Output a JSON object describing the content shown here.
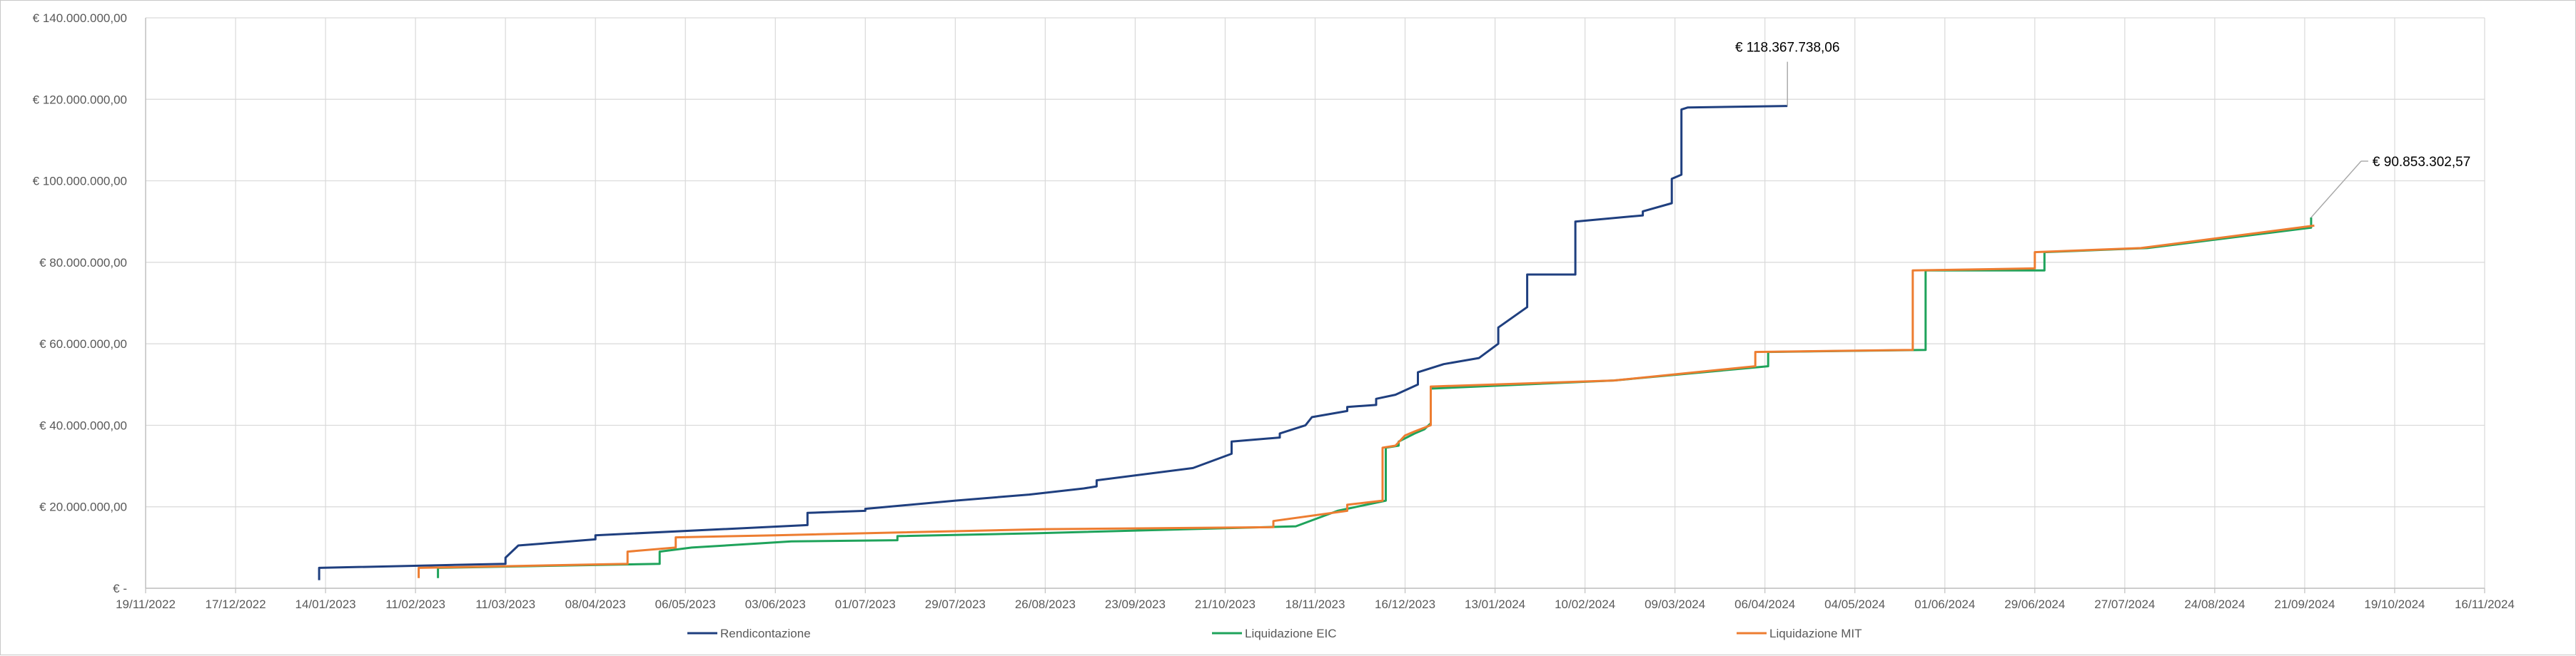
{
  "chart_data": {
    "type": "line",
    "line_shape": "step",
    "title": "",
    "xlabel": "",
    "ylabel": "",
    "grid": true,
    "legend_position": "bottom",
    "xlim": [
      "2022-11-19",
      "2024-11-16"
    ],
    "ylim": [
      0,
      140000000
    ],
    "x_ticks": [
      "19/11/2022",
      "17/12/2022",
      "14/01/2023",
      "11/02/2023",
      "11/03/2023",
      "08/04/2023",
      "06/05/2023",
      "03/06/2023",
      "01/07/2023",
      "29/07/2023",
      "26/08/2023",
      "23/09/2023",
      "21/10/2023",
      "18/11/2023",
      "16/12/2023",
      "13/01/2024",
      "10/02/2024",
      "09/03/2024",
      "06/04/2024",
      "04/05/2024",
      "01/06/2024",
      "29/06/2024",
      "27/07/2024",
      "24/08/2024",
      "21/09/2024",
      "19/10/2024",
      "16/11/2024"
    ],
    "y_ticks": [
      {
        "value": 0,
        "label": "€ -"
      },
      {
        "value": 20000000,
        "label": "€ 20.000.000,00"
      },
      {
        "value": 40000000,
        "label": "€ 40.000.000,00"
      },
      {
        "value": 60000000,
        "label": "€ 60.000.000,00"
      },
      {
        "value": 80000000,
        "label": "€ 80.000.000,00"
      },
      {
        "value": 100000000,
        "label": "€ 100.000.000,00"
      },
      {
        "value": 120000000,
        "label": "€ 120.000.000,00"
      },
      {
        "value": 140000000,
        "label": "€ 140.000.000,00"
      }
    ],
    "series": [
      {
        "name": "Rendicontazione",
        "color": "#1f3f7f",
        "points": [
          [
            "2023-01-12",
            2000000
          ],
          [
            "2023-01-12",
            5000000
          ],
          [
            "2023-03-11",
            6000000
          ],
          [
            "2023-03-11",
            7500000
          ],
          [
            "2023-03-15",
            10500000
          ],
          [
            "2023-04-08",
            12000000
          ],
          [
            "2023-04-08",
            13000000
          ],
          [
            "2023-06-13",
            15500000
          ],
          [
            "2023-06-13",
            18500000
          ],
          [
            "2023-07-01",
            19000000
          ],
          [
            "2023-07-01",
            19500000
          ],
          [
            "2023-07-29",
            21500000
          ],
          [
            "2023-08-21",
            23000000
          ],
          [
            "2023-09-07",
            24500000
          ],
          [
            "2023-09-11",
            25000000
          ],
          [
            "2023-09-11",
            26500000
          ],
          [
            "2023-10-11",
            29500000
          ],
          [
            "2023-10-23",
            33000000
          ],
          [
            "2023-10-23",
            36000000
          ],
          [
            "2023-11-07",
            37000000
          ],
          [
            "2023-11-07",
            38000000
          ],
          [
            "2023-11-15",
            40000000
          ],
          [
            "2023-11-17",
            42000000
          ],
          [
            "2023-11-28",
            43500000
          ],
          [
            "2023-11-28",
            44500000
          ],
          [
            "2023-12-07",
            45000000
          ],
          [
            "2023-12-07",
            46500000
          ],
          [
            "2023-12-13",
            47500000
          ],
          [
            "2023-12-20",
            50000000
          ],
          [
            "2023-12-20",
            53000000
          ],
          [
            "2023-12-28",
            55000000
          ],
          [
            "2024-01-08",
            56500000
          ],
          [
            "2024-01-14",
            60000000
          ],
          [
            "2024-01-14",
            64000000
          ],
          [
            "2024-01-23",
            69000000
          ],
          [
            "2024-01-23",
            77000000
          ],
          [
            "2024-02-07",
            77000000
          ],
          [
            "2024-02-07",
            90000000
          ],
          [
            "2024-02-28",
            91500000
          ],
          [
            "2024-02-28",
            92500000
          ],
          [
            "2024-03-08",
            94500000
          ],
          [
            "2024-03-08",
            100500000
          ],
          [
            "2024-03-11",
            101500000
          ],
          [
            "2024-03-11",
            117500000
          ],
          [
            "2024-03-13",
            118000000
          ],
          [
            "2024-04-13",
            118367738
          ]
        ]
      },
      {
        "name": "Liquidazione EIC",
        "color": "#1fa35b",
        "points": [
          [
            "2023-02-18",
            2500000
          ],
          [
            "2023-02-18",
            5000000
          ],
          [
            "2023-04-28",
            6000000
          ],
          [
            "2023-04-28",
            9000000
          ],
          [
            "2023-05-08",
            10000000
          ],
          [
            "2023-06-08",
            11500000
          ],
          [
            "2023-07-11",
            11800000
          ],
          [
            "2023-07-11",
            12800000
          ],
          [
            "2023-08-23",
            13500000
          ],
          [
            "2023-11-12",
            15200000
          ],
          [
            "2023-11-25",
            19000000
          ],
          [
            "2023-12-10",
            21500000
          ],
          [
            "2023-12-10",
            34500000
          ],
          [
            "2023-12-14",
            35000000
          ],
          [
            "2023-12-14",
            36000000
          ],
          [
            "2023-12-19",
            38000000
          ],
          [
            "2023-12-22",
            39000000
          ],
          [
            "2023-12-24",
            40500000
          ],
          [
            "2023-12-24",
            49000000
          ],
          [
            "2024-02-19",
            51000000
          ],
          [
            "2024-04-07",
            54500000
          ],
          [
            "2024-04-07",
            58000000
          ],
          [
            "2024-05-26",
            58500000
          ],
          [
            "2024-05-26",
            78000000
          ],
          [
            "2024-07-02",
            78000000
          ],
          [
            "2024-07-02",
            82500000
          ],
          [
            "2024-08-03",
            83500000
          ],
          [
            "2024-09-23",
            88500000
          ],
          [
            "2024-09-23",
            91000000
          ]
        ]
      },
      {
        "name": "Liquidazione MIT",
        "color": "#ed7d31",
        "points": [
          [
            "2023-02-12",
            2500000
          ],
          [
            "2023-02-12",
            5000000
          ],
          [
            "2023-04-18",
            6000000
          ],
          [
            "2023-04-18",
            9000000
          ],
          [
            "2023-05-03",
            10000000
          ],
          [
            "2023-05-03",
            12500000
          ],
          [
            "2023-06-03",
            13000000
          ],
          [
            "2023-08-26",
            14500000
          ],
          [
            "2023-11-05",
            15000000
          ],
          [
            "2023-11-05",
            16500000
          ],
          [
            "2023-11-28",
            19000000
          ],
          [
            "2023-11-28",
            20500000
          ],
          [
            "2023-12-09",
            21500000
          ],
          [
            "2023-12-09",
            34500000
          ],
          [
            "2023-12-13",
            35000000
          ],
          [
            "2023-12-16",
            37500000
          ],
          [
            "2023-12-19",
            38500000
          ],
          [
            "2023-12-24",
            40000000
          ],
          [
            "2023-12-24",
            49500000
          ],
          [
            "2024-02-19",
            51000000
          ],
          [
            "2024-04-03",
            54500000
          ],
          [
            "2024-04-03",
            58000000
          ],
          [
            "2024-05-22",
            58500000
          ],
          [
            "2024-05-22",
            78000000
          ],
          [
            "2024-06-29",
            78500000
          ],
          [
            "2024-06-29",
            82500000
          ],
          [
            "2024-08-01",
            83500000
          ],
          [
            "2024-09-24",
            89000000
          ]
        ]
      }
    ],
    "annotations": [
      {
        "text": "€ 118.367.738,06",
        "series": "Rendicontazione",
        "anchor": [
          "2024-04-13",
          118367738
        ]
      },
      {
        "text": "€ 90.853.302,57",
        "series": "Liquidazione EIC",
        "anchor": [
          "2024-09-23",
          91000000
        ]
      }
    ]
  }
}
